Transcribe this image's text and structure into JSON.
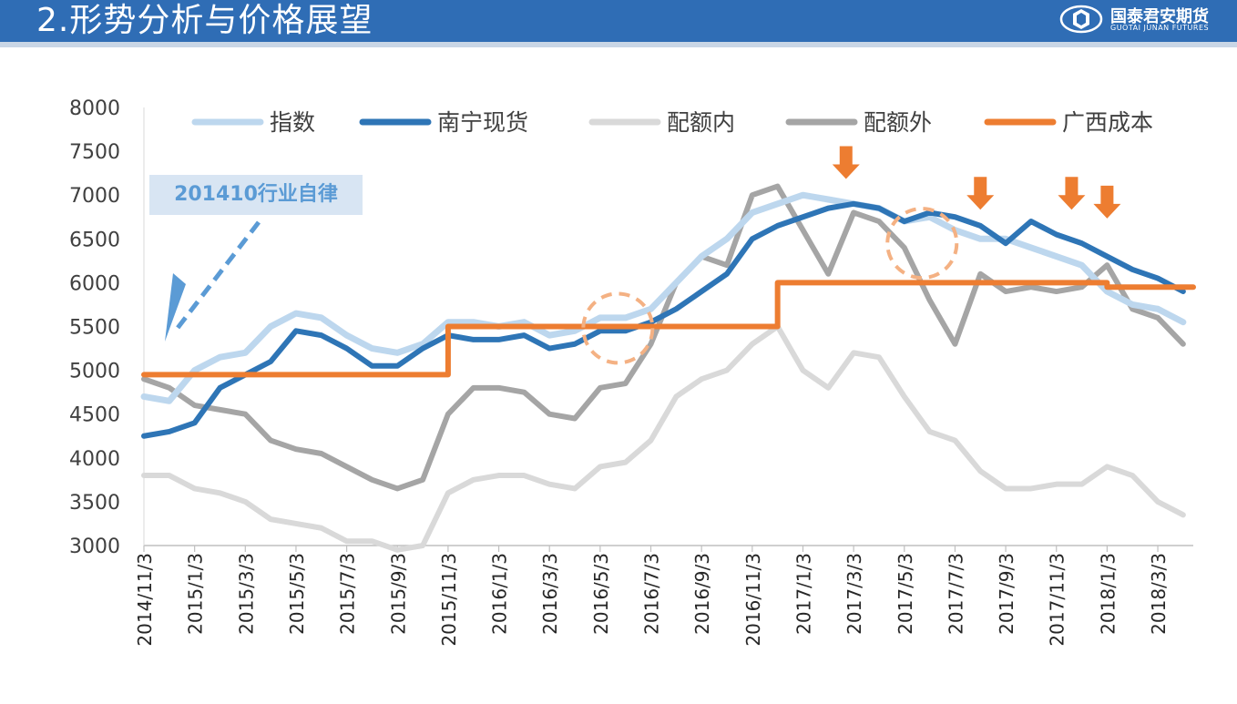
{
  "header": {
    "title": "2.形势分析与价格展望",
    "logo_cn": "国泰君安期货",
    "logo_en": "GUOTAI JUNAN FUTURES",
    "color": "#2f6db5"
  },
  "annotation": {
    "text": "201410行业自律",
    "color": "#5b9bd5"
  },
  "chart_data": {
    "type": "line",
    "title": "",
    "xlabel": "",
    "ylabel": "",
    "ylim": [
      3000,
      8000
    ],
    "yticks": [
      3000,
      3500,
      4000,
      4500,
      5000,
      5500,
      6000,
      6500,
      7000,
      7500,
      8000
    ],
    "xticks": [
      "2014/11/3",
      "2015/1/3",
      "2015/3/3",
      "2015/5/3",
      "2015/7/3",
      "2015/9/3",
      "2015/11/3",
      "2016/1/3",
      "2016/3/3",
      "2016/5/3",
      "2016/7/3",
      "2016/9/3",
      "2016/11/3",
      "2017/1/3",
      "2017/3/3",
      "2017/5/3",
      "2017/7/3",
      "2017/9/3",
      "2017/11/3",
      "2018/1/3",
      "2018/3/3"
    ],
    "xrange": [
      0,
      20.7
    ],
    "legend_position": "top",
    "grid": false,
    "x": [
      0,
      0.5,
      1,
      1.5,
      2,
      2.5,
      3,
      3.5,
      4,
      4.5,
      5,
      5.5,
      6,
      6.5,
      7,
      7.5,
      8,
      8.5,
      9,
      9.5,
      10,
      10.5,
      11,
      11.5,
      12,
      12.5,
      13,
      13.5,
      14,
      14.5,
      15,
      15.5,
      16,
      16.5,
      17,
      17.5,
      18,
      18.5,
      19,
      19.5,
      20,
      20.5
    ],
    "series": [
      {
        "name": "指数",
        "color": "#bdd7ee",
        "values": [
          4700,
          4650,
          5000,
          5150,
          5200,
          5500,
          5650,
          5600,
          5400,
          5250,
          5200,
          5300,
          5550,
          5550,
          5500,
          5550,
          5400,
          5450,
          5600,
          5600,
          5700,
          6000,
          6300,
          6500,
          6800,
          6900,
          7000,
          6950,
          6900,
          6850,
          6700,
          6750,
          6600,
          6500,
          6500,
          6400,
          6300,
          6200,
          5900,
          5750,
          5700,
          5550
        ]
      },
      {
        "name": "南宁现货",
        "color": "#2e75b6",
        "values": [
          4250,
          4300,
          4400,
          4800,
          4950,
          5100,
          5450,
          5400,
          5250,
          5050,
          5050,
          5250,
          5400,
          5350,
          5350,
          5400,
          5250,
          5300,
          5450,
          5450,
          5550,
          5700,
          5900,
          6100,
          6500,
          6650,
          6750,
          6850,
          6900,
          6850,
          6700,
          6800,
          6750,
          6650,
          6450,
          6700,
          6550,
          6450,
          6300,
          6150,
          6050,
          5900
        ]
      },
      {
        "name": "配额内",
        "color": "#d9d9d9",
        "values": [
          3800,
          3800,
          3650,
          3600,
          3500,
          3300,
          3250,
          3200,
          3050,
          3050,
          2950,
          3000,
          3600,
          3750,
          3800,
          3800,
          3700,
          3650,
          3900,
          3950,
          4200,
          4700,
          4900,
          5000,
          5300,
          5500,
          5000,
          4800,
          5200,
          5150,
          4700,
          4300,
          4200,
          3850,
          3650,
          3650,
          3700,
          3700,
          3900,
          3800,
          3500,
          3350
        ]
      },
      {
        "name": "配额外",
        "color": "#a5a5a5",
        "values": [
          4900,
          4800,
          4600,
          4550,
          4500,
          4200,
          4100,
          4050,
          3900,
          3750,
          3650,
          3750,
          4500,
          4800,
          4800,
          4750,
          4500,
          4450,
          4800,
          4850,
          5300,
          6000,
          6300,
          6200,
          7000,
          7100,
          6600,
          6100,
          6800,
          6700,
          6400,
          5800,
          5300,
          6100,
          5900,
          5950,
          5900,
          5950,
          6200,
          5700,
          5600,
          5300
        ]
      },
      {
        "name": "广西成本",
        "color": "#ed7d31",
        "values": [
          4950,
          4950,
          4950,
          4950,
          4950,
          4950,
          4950,
          4950,
          4950,
          4950,
          4950,
          4950,
          5500,
          5500,
          5500,
          5500,
          5500,
          5500,
          5500,
          5500,
          5500,
          5500,
          5500,
          5500,
          5500,
          6000,
          6000,
          6000,
          6000,
          6000,
          6000,
          6000,
          6000,
          6000,
          6000,
          6000,
          6000,
          6000,
          5950,
          5950,
          5950,
          5950
        ]
      }
    ],
    "annotations": {
      "dashed_circles_x": [
        9.35,
        15.35
      ],
      "down_arrows_x": [
        13.85,
        16.5,
        18.3,
        19.0
      ]
    }
  }
}
